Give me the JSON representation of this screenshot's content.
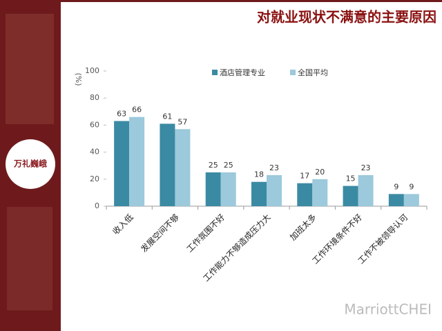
{
  "chart_data": {
    "type": "bar",
    "title": "对就业现状不满意的主要原因",
    "ylabel": "(%)",
    "categories": [
      "收入低",
      "发展空间不够",
      "工作氛围不好",
      "工作能力不够造成压力大",
      "加班太多",
      "工作环境条件不好",
      "工作不被领导认可"
    ],
    "series": [
      {
        "name": "酒店管理专业",
        "color": "#3b8aa3",
        "values": [
          63,
          61,
          25,
          18,
          17,
          15,
          9
        ]
      },
      {
        "name": "全国平均",
        "color": "#9cc9dc",
        "values": [
          66,
          57,
          25,
          23,
          20,
          23,
          9
        ]
      }
    ],
    "ylim": [
      0,
      100
    ],
    "yticks": [
      0,
      20,
      40,
      60,
      80,
      100
    ],
    "logo": "万礼巍峨",
    "watermark": "MarriottCHEI"
  }
}
